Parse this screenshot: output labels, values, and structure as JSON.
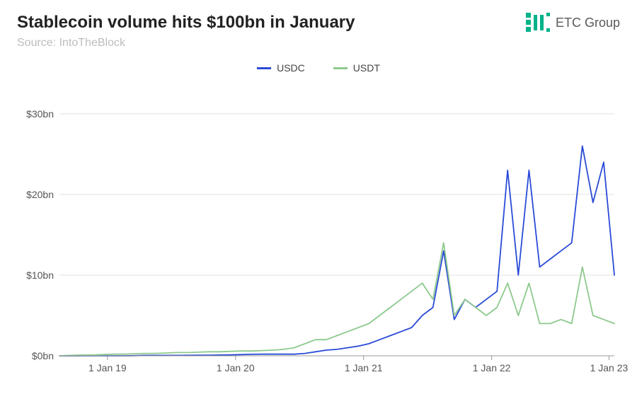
{
  "header": {
    "title": "Stablecoin volume hits $100bn in January",
    "subtitle": "Source: IntoTheBlock",
    "title_fontsize": 24,
    "subtitle_fontsize": 16,
    "subtitle_color": "#bdbdbd",
    "title_color": "#222222"
  },
  "brand": {
    "label": "ETC Group",
    "color": "#00b289"
  },
  "legend": {
    "items": [
      {
        "label": "USDC",
        "color": "#2a4bd7"
      },
      {
        "label": "USDT",
        "color": "#8dc98d"
      }
    ]
  },
  "chart": {
    "type": "line",
    "background_color": "#ffffff",
    "grid_color": "#e0e0e0",
    "baseline_color": "#999999",
    "axis_label_color": "#555555",
    "axis_fontsize": 14,
    "ylim": [
      0,
      32
    ],
    "yticks": [
      {
        "v": 0,
        "label": "$0bn"
      },
      {
        "v": 10,
        "label": "$10bn"
      },
      {
        "v": 20,
        "label": "$20bn"
      },
      {
        "v": 30,
        "label": "$30bn"
      }
    ],
    "xlim": [
      0,
      52
    ],
    "xticks": [
      {
        "v": 4.5,
        "label": "1 Jan 19"
      },
      {
        "v": 16.5,
        "label": "1 Jan 20"
      },
      {
        "v": 28.5,
        "label": "1 Jan 21"
      },
      {
        "v": 40.5,
        "label": "1 Jan 22"
      },
      {
        "v": 51.5,
        "label": "1 Jan 23"
      }
    ],
    "series": [
      {
        "name": "USDC",
        "color": "#2a4bd7",
        "line_width": 1.8,
        "data": [
          0,
          0,
          0,
          0,
          0,
          0,
          0,
          0.02,
          0.05,
          0.05,
          0.05,
          0.05,
          0.06,
          0.07,
          0.08,
          0.1,
          0.12,
          0.15,
          0.18,
          0.2,
          0.2,
          0.2,
          0.2,
          0.3,
          0.5,
          0.7,
          0.8,
          1.0,
          1.2,
          1.5,
          2.0,
          2.5,
          3.0,
          3.5,
          5.0,
          6.0,
          13.0,
          4.5,
          7.0,
          6.0,
          7.0,
          8.0,
          23.0,
          10.0,
          23.0,
          11.0,
          12.0,
          13.0,
          14.0,
          26.0,
          19.0,
          24.0,
          10.0
        ]
      },
      {
        "name": "USDT",
        "color": "#8dc98d",
        "line_width": 1.8,
        "data": [
          0,
          0.05,
          0.1,
          0.1,
          0.15,
          0.2,
          0.2,
          0.25,
          0.3,
          0.3,
          0.35,
          0.4,
          0.4,
          0.45,
          0.5,
          0.5,
          0.55,
          0.6,
          0.6,
          0.65,
          0.7,
          0.8,
          1.0,
          1.5,
          2.0,
          2.0,
          2.5,
          3.0,
          3.5,
          4.0,
          5.0,
          6.0,
          7.0,
          8.0,
          9.0,
          7.0,
          14.0,
          5.0,
          7.0,
          6.0,
          5.0,
          6.0,
          9.0,
          5.0,
          9.0,
          4.0,
          4.0,
          4.5,
          4.0,
          11.0,
          5.0,
          4.5,
          4.0
        ]
      }
    ]
  }
}
